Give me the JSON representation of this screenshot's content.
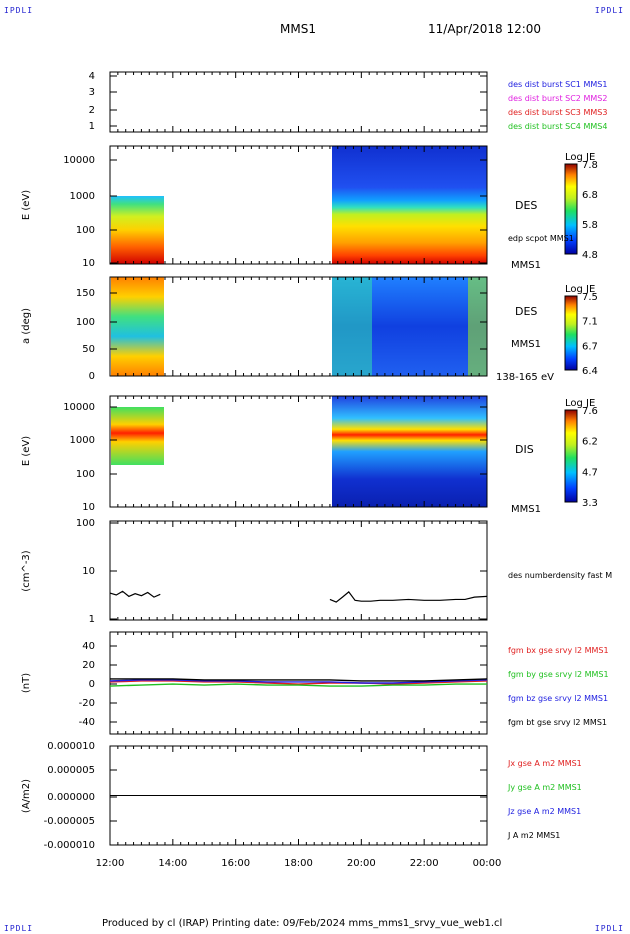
{
  "corner_mark": "IPDLI",
  "header": {
    "spacecraft": "MMS1",
    "datetime": "11/Apr/2018 12:00"
  },
  "footer": {
    "text": "Produced by cl (IRAP)   Printing date: 09/Feb/2024   mms_mms1_srvy_vue_web1.cl"
  },
  "time_axis": {
    "ticks": [
      "12:00",
      "14:00",
      "16:00",
      "18:00",
      "20:00",
      "22:00",
      "00:00"
    ]
  },
  "panel_labels": {
    "energy_des": "DES",
    "energy_des_sub": "edp scpot MMS1",
    "energy_des_sc": "MMS1",
    "pitch_des": "DES",
    "pitch_des_sc": "MMS1",
    "pitch_des_range": "138-165 eV",
    "energy_dis": "DIS",
    "energy_dis_sc": "MMS1",
    "density": "des numberdensity fast M"
  },
  "colorbars": [
    {
      "title": "Log JE",
      "ticks": [
        "7.8",
        "6.8",
        "5.8",
        "4.8"
      ]
    },
    {
      "title": "Log JE",
      "ticks": [
        "7.5",
        "7.1",
        "6.7",
        "6.4"
      ]
    },
    {
      "title": "Log JE",
      "ticks": [
        "7.6",
        "6.2",
        "4.7",
        "3.3"
      ]
    }
  ],
  "legends": {
    "burst": [
      {
        "text": "des dist burst SC1 MMS1",
        "color": "#2020e0"
      },
      {
        "text": "des dist burst SC2 MMS2",
        "color": "#e020e0"
      },
      {
        "text": "des dist burst SC3 MMS3",
        "color": "#e02020"
      },
      {
        "text": "des dist burst SC4 MMS4",
        "color": "#20c020"
      }
    ],
    "field": [
      {
        "text": "fgm bx gse srvy l2 MMS1",
        "color": "#e02020"
      },
      {
        "text": "fgm by gse srvy l2 MMS1",
        "color": "#20c020"
      },
      {
        "text": "fgm bz gse srvy l2 MMS1",
        "color": "#2020e0"
      },
      {
        "text": "fgm bt gse srvy l2 MMS1",
        "color": "#000000"
      }
    ],
    "current": [
      {
        "text": "Jx gse A m2 MMS1",
        "color": "#e02020"
      },
      {
        "text": "Jy gse A m2 MMS1",
        "color": "#20c020"
      },
      {
        "text": "Jz gse A m2 MMS1",
        "color": "#2020e0"
      },
      {
        "text": "J A m2 MMS1",
        "color": "#000000"
      }
    ]
  },
  "chart_data": [
    {
      "type": "line",
      "title": "",
      "ylabel": "",
      "ylim": [
        0.5,
        4.5
      ],
      "y_ticks": [
        "4",
        "3",
        "2",
        "1"
      ],
      "series": []
    },
    {
      "type": "heatmap",
      "ylabel": "E (eV)",
      "yscale": "log",
      "ylim": [
        10,
        30000
      ],
      "y_ticks": [
        "10000",
        "1000",
        "100",
        "10"
      ],
      "colorbar": "Log JE",
      "crange": [
        4.8,
        7.8
      ],
      "coverage_hours": [
        [
          0,
          1.7
        ],
        [
          7.0,
          12.0
        ]
      ]
    },
    {
      "type": "heatmap",
      "ylabel": "a (deg)",
      "ylim": [
        0,
        180
      ],
      "y_ticks": [
        "150",
        "100",
        "50",
        "0"
      ],
      "colorbar": "Log JE",
      "crange": [
        6.4,
        7.5
      ],
      "coverage_hours": [
        [
          0,
          1.7
        ],
        [
          7.0,
          12.0
        ]
      ]
    },
    {
      "type": "heatmap",
      "ylabel": "E (eV)",
      "yscale": "log",
      "ylim": [
        10,
        20000
      ],
      "y_ticks": [
        "10000",
        "1000",
        "100",
        "10"
      ],
      "colorbar": "Log JE",
      "crange": [
        3.3,
        7.6
      ],
      "coverage_hours": [
        [
          0,
          1.7
        ],
        [
          7.0,
          12.0
        ]
      ]
    },
    {
      "type": "line",
      "ylabel": "(cm^-3)",
      "yscale": "log",
      "ylim": [
        1,
        100
      ],
      "y_ticks": [
        "100",
        "10",
        "1"
      ],
      "series": [
        {
          "name": "des numberdensity fast M",
          "color": "#000000",
          "x": [
            0,
            0.2,
            0.4,
            0.6,
            0.8,
            1.0,
            1.2,
            1.4,
            1.6,
            7.0,
            7.2,
            7.4,
            7.6,
            7.8,
            8.0,
            8.3,
            8.6,
            9.0,
            9.5,
            10.0,
            10.5,
            11.0,
            11.3,
            11.6,
            12.0
          ],
          "y": [
            3.5,
            3.2,
            3.8,
            3.0,
            3.4,
            3.1,
            3.6,
            2.9,
            3.3,
            2.6,
            2.3,
            2.9,
            3.7,
            2.5,
            2.4,
            2.4,
            2.5,
            2.5,
            2.6,
            2.5,
            2.5,
            2.6,
            2.6,
            2.9,
            3.0
          ]
        }
      ]
    },
    {
      "type": "line",
      "ylabel": "(nT)",
      "ylim": [
        -50,
        50
      ],
      "y_ticks": [
        "40",
        "20",
        "0",
        "-20",
        "-40"
      ],
      "series": [
        {
          "name": "fgm bx gse srvy l2 MMS1",
          "color": "#e02020",
          "x": [
            0,
            1,
            2,
            3,
            4,
            5,
            6,
            7,
            8,
            9,
            10,
            11,
            12
          ],
          "y": [
            1,
            2,
            2,
            1,
            1,
            0,
            -1,
            0,
            0,
            -1,
            0,
            1,
            2
          ]
        },
        {
          "name": "fgm by gse srvy l2 MMS1",
          "color": "#20c020",
          "x": [
            0,
            1,
            2,
            3,
            4,
            5,
            6,
            7,
            8,
            9,
            10,
            11,
            12
          ],
          "y": [
            -3,
            -2,
            -1,
            -2,
            -1,
            -2,
            -2,
            -3,
            -3,
            -2,
            -2,
            -1,
            -1
          ]
        },
        {
          "name": "fgm bz gse srvy l2 MMS1",
          "color": "#2020e0",
          "x": [
            0,
            1,
            2,
            3,
            4,
            5,
            6,
            7,
            8,
            9,
            10,
            11,
            12
          ],
          "y": [
            2,
            3,
            3,
            2,
            2,
            1,
            1,
            1,
            0,
            0,
            1,
            2,
            3
          ]
        },
        {
          "name": "fgm bt gse srvy l2 MMS1",
          "color": "#000000",
          "x": [
            0,
            1,
            2,
            3,
            4,
            5,
            6,
            7,
            8,
            9,
            10,
            11,
            12
          ],
          "y": [
            4,
            4,
            4,
            3,
            3,
            3,
            3,
            3,
            2,
            2,
            2,
            3,
            4
          ]
        }
      ]
    },
    {
      "type": "line",
      "ylabel": "(A/m2)",
      "ylim": [
        -1e-05,
        1e-05
      ],
      "y_ticks": [
        "0.000010",
        "0.000005",
        "0.000000",
        "-0.000005",
        "-0.000010"
      ],
      "series": [
        {
          "name": "J A m2 MMS1",
          "color": "#000000",
          "x": [
            0,
            12
          ],
          "y": [
            0,
            0
          ]
        }
      ]
    }
  ]
}
